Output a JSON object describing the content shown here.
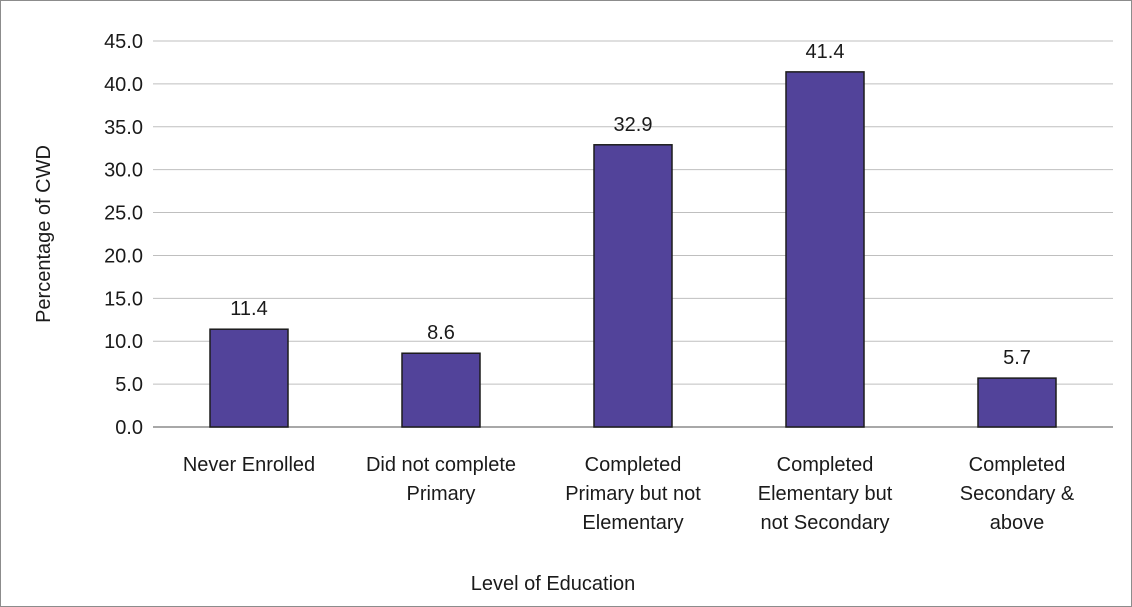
{
  "chart_data": {
    "type": "bar",
    "title": "",
    "xlabel": "Level of Education",
    "ylabel": "Percentage of CWD",
    "ylim": [
      0,
      45
    ],
    "ytick_step": 5,
    "ytick_labels": [
      "0.0",
      "5.0",
      "10.0",
      "15.0",
      "20.0",
      "25.0",
      "30.0",
      "35.0",
      "40.0",
      "45.0"
    ],
    "grid": true,
    "legend": "none",
    "categories": [
      [
        "Never Enrolled"
      ],
      [
        "Did not complete",
        "Primary"
      ],
      [
        "Completed",
        "Primary but not",
        "Elementary"
      ],
      [
        "Completed",
        "Elementary but",
        "not Secondary"
      ],
      [
        "Completed",
        "Secondary &",
        "above"
      ]
    ],
    "values": [
      11.4,
      8.6,
      32.9,
      41.4,
      5.7
    ],
    "value_labels": [
      "11.4",
      "8.6",
      "32.9",
      "41.4",
      "5.7"
    ],
    "colors": {
      "bar": "#52439a",
      "bar_edge": "#1c1c1c",
      "grid": "#bfbfbf",
      "axis": "#8c8c8c"
    }
  }
}
